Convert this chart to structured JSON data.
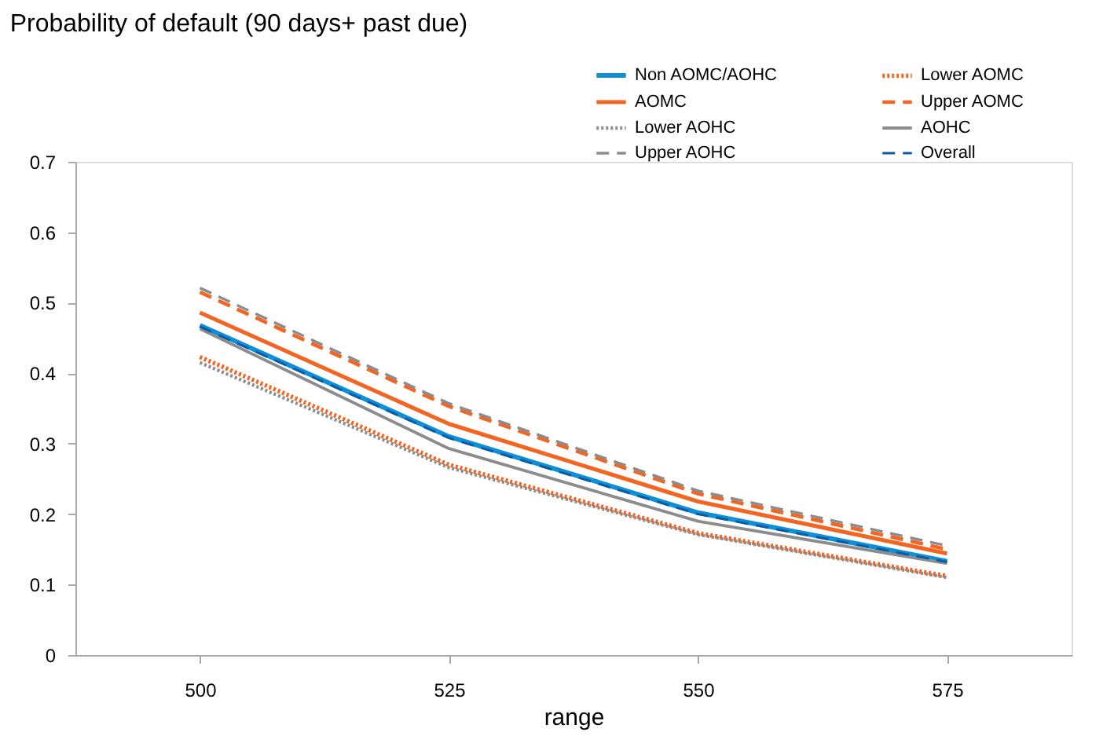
{
  "chart_data": {
    "type": "line",
    "title": "Probability of default (90 days+ past due)",
    "xlabel": "range",
    "categories": [
      "500",
      "525",
      "550",
      "575"
    ],
    "ylim": [
      0,
      0.7
    ],
    "yticks": [
      {
        "value": 0,
        "label": "0"
      },
      0.1,
      0.2,
      0.3,
      0.4,
      0.5,
      0.6,
      0.7
    ],
    "grid": false,
    "legend": "top right",
    "marker": "none",
    "series": [
      {
        "name": "Non AOMC/AOHC",
        "color": "#0f8fd6",
        "line_style": "solid",
        "values": [
          0.468,
          0.31,
          0.202,
          0.133
        ]
      },
      {
        "name": "Lower AOMC",
        "color": "#f26522",
        "line_style": "dotted",
        "values": [
          0.423,
          0.27,
          0.173,
          0.112
        ]
      },
      {
        "name": "AOMC",
        "color": "#f26522",
        "line_style": "solid",
        "values": [
          0.486,
          0.328,
          0.218,
          0.144
        ]
      },
      {
        "name": "Upper AOMC",
        "color": "#f26522",
        "line_style": "dashed",
        "values": [
          0.515,
          0.353,
          0.229,
          0.15
        ]
      },
      {
        "name": "Lower AOHC",
        "color": "#8c8c8c",
        "line_style": "dotted",
        "values": [
          0.415,
          0.266,
          0.171,
          0.11
        ]
      },
      {
        "name": "AOHC",
        "color": "#8c8c8c",
        "line_style": "solid",
        "values": [
          0.463,
          0.293,
          0.19,
          0.13
        ]
      },
      {
        "name": "Upper AOHC",
        "color": "#8c8c8c",
        "line_style": "dashed",
        "values": [
          0.521,
          0.357,
          0.233,
          0.155
        ]
      },
      {
        "name": "Overall",
        "color": "#0a5aa6",
        "line_style": "dashed",
        "values": [
          0.466,
          0.308,
          0.2,
          0.132
        ]
      }
    ]
  }
}
